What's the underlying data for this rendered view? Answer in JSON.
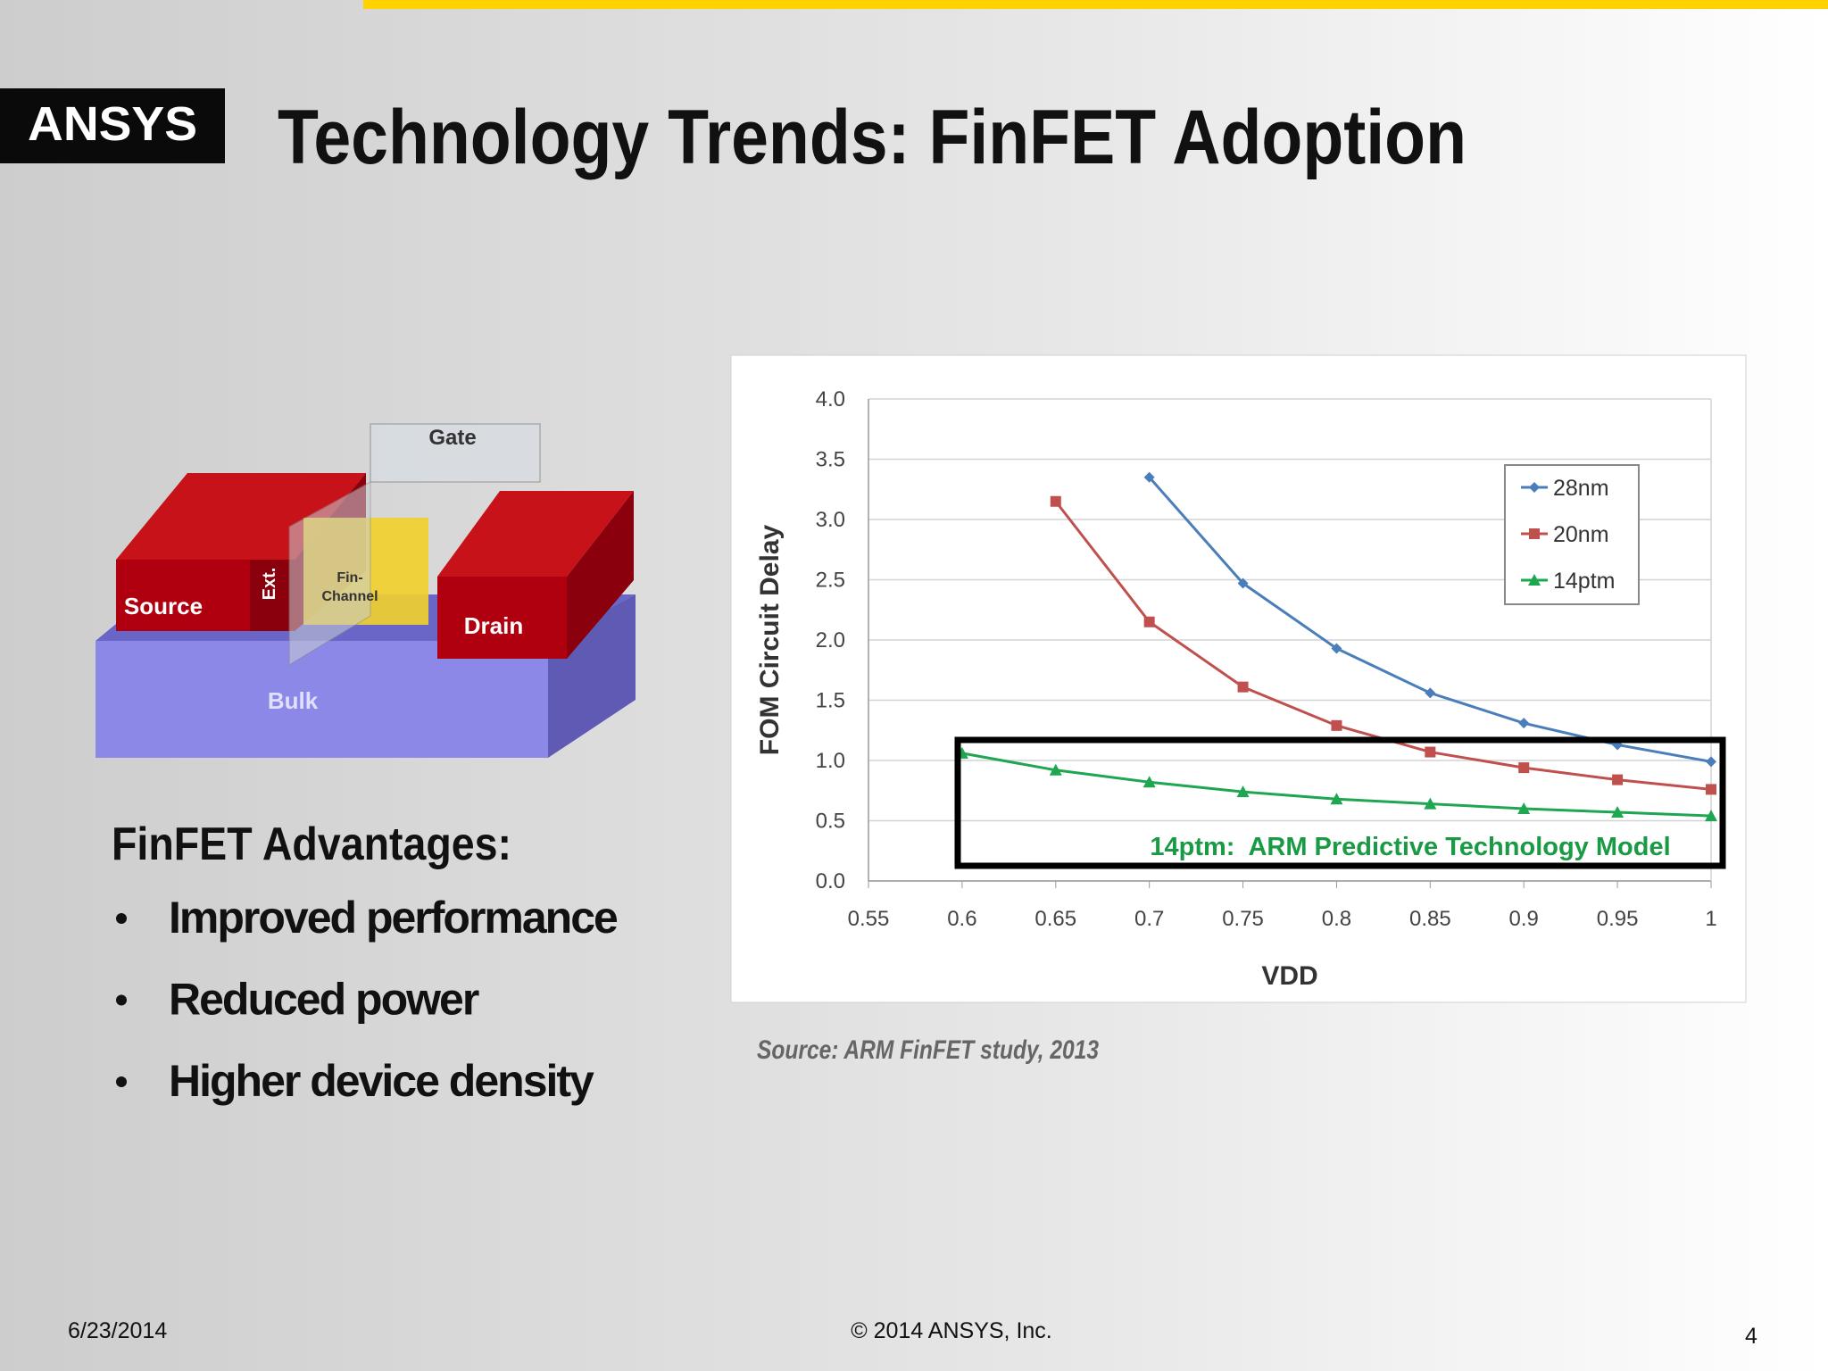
{
  "header": {
    "logo": "ANSYS",
    "title": "Technology Trends: FinFET Adoption"
  },
  "diagram": {
    "labels": [
      "Gate",
      "Source",
      "Ext.",
      "Fin-",
      "Channel",
      "Drain",
      "Bulk"
    ]
  },
  "advantages": {
    "heading": "FinFET Advantages:",
    "items": [
      "Improved performance",
      "Reduced power",
      "Higher device density"
    ]
  },
  "chart_data": {
    "type": "line",
    "xlabel": "VDD",
    "ylabel": "FOM Circuit Delay",
    "x": [
      0.6,
      0.65,
      0.7,
      0.75,
      0.8,
      0.85,
      0.9,
      0.95,
      1
    ],
    "series": [
      {
        "name": "28nm",
        "color": "#4a7ebb",
        "marker": "diamond",
        "values": [
          null,
          null,
          3.35,
          2.47,
          1.93,
          1.56,
          1.31,
          1.13,
          0.99
        ]
      },
      {
        "name": "20nm",
        "color": "#c0504d",
        "marker": "square",
        "values": [
          null,
          3.15,
          2.15,
          1.61,
          1.29,
          1.07,
          0.94,
          0.84,
          0.76
        ]
      },
      {
        "name": "14ptm",
        "color": "#1fa650",
        "marker": "triangle",
        "values": [
          1.06,
          0.92,
          0.82,
          0.74,
          0.68,
          0.64,
          0.6,
          0.57,
          0.54
        ]
      }
    ],
    "xlim": [
      0.55,
      1
    ],
    "xticks": [
      0.55,
      0.6,
      0.65,
      0.7,
      0.75,
      0.8,
      0.85,
      0.9,
      0.95,
      1
    ],
    "ylim": [
      0,
      4
    ],
    "yticks": [
      {
        "value": 0,
        "label": "0.0"
      },
      {
        "value": 0.5,
        "label": "0.5"
      },
      {
        "value": 1,
        "label": "1.0"
      },
      {
        "value": 1.5,
        "label": "1.5"
      },
      {
        "value": 2,
        "label": "2.0"
      },
      {
        "value": 2.5,
        "label": "2.5"
      },
      {
        "value": 3,
        "label": "3.0"
      },
      {
        "value": 3.5,
        "label": "3.5"
      },
      {
        "value": 4,
        "label": "4.0"
      }
    ],
    "grid": true,
    "legend": "upper right",
    "annotation": "14ptm:  ARM Predictive Technology Model"
  },
  "source": "Source: ARM FinFET study, 2013",
  "footer": {
    "date": "6/23/2014",
    "copyright": "© 2014 ANSYS, Inc.",
    "page": "4"
  }
}
